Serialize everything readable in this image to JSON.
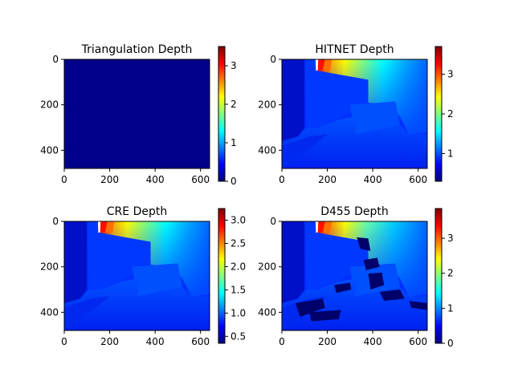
{
  "colors": {
    "jet": [
      "#00007f",
      "#0000ff",
      "#007fff",
      "#00ffff",
      "#7fff7f",
      "#ffff00",
      "#ff7f00",
      "#ff0000",
      "#7f0000"
    ],
    "axis": "#000000",
    "background": "#ffffff"
  },
  "chart_data": [
    {
      "type": "heatmap",
      "title": "Triangulation Depth",
      "xlim": [
        0,
        640
      ],
      "ylim": [
        480,
        0
      ],
      "xticks": [
        0,
        200,
        400,
        600
      ],
      "yticks": [
        0,
        200,
        400
      ],
      "colorbar": {
        "min": 0,
        "max": 3.5,
        "ticks": [
          0,
          1,
          2,
          3
        ]
      },
      "content": "near-zero depth everywhere"
    },
    {
      "type": "heatmap",
      "title": "HITNET Depth",
      "xlim": [
        0,
        640
      ],
      "ylim": [
        480,
        0
      ],
      "xticks": [
        0,
        200,
        400,
        600
      ],
      "yticks": [
        0,
        200,
        400
      ],
      "colorbar": {
        "min": 0.3,
        "max": 3.7,
        "ticks": [
          1,
          2,
          3
        ]
      },
      "content": "indoor scene depth map, far wall red at top-left"
    },
    {
      "type": "heatmap",
      "title": "CRE Depth",
      "xlim": [
        0,
        640
      ],
      "ylim": [
        480,
        0
      ],
      "xticks": [
        0,
        200,
        400,
        600
      ],
      "yticks": [
        0,
        200,
        400
      ],
      "colorbar": {
        "min": 0.35,
        "max": 3.25,
        "ticks": [
          0.5,
          1.0,
          1.5,
          2.0,
          2.5,
          3.0
        ]
      },
      "content": "indoor scene depth map, similar to HITNET"
    },
    {
      "type": "heatmap",
      "title": "D455 Depth",
      "xlim": [
        0,
        640
      ],
      "ylim": [
        480,
        0
      ],
      "xticks": [
        0,
        200,
        400,
        600
      ],
      "yticks": [
        0,
        200,
        400
      ],
      "colorbar": {
        "min": 0,
        "max": 3.85,
        "ticks": [
          0,
          1,
          2,
          3
        ]
      },
      "content": "sensor depth map with missing-data holes"
    }
  ]
}
